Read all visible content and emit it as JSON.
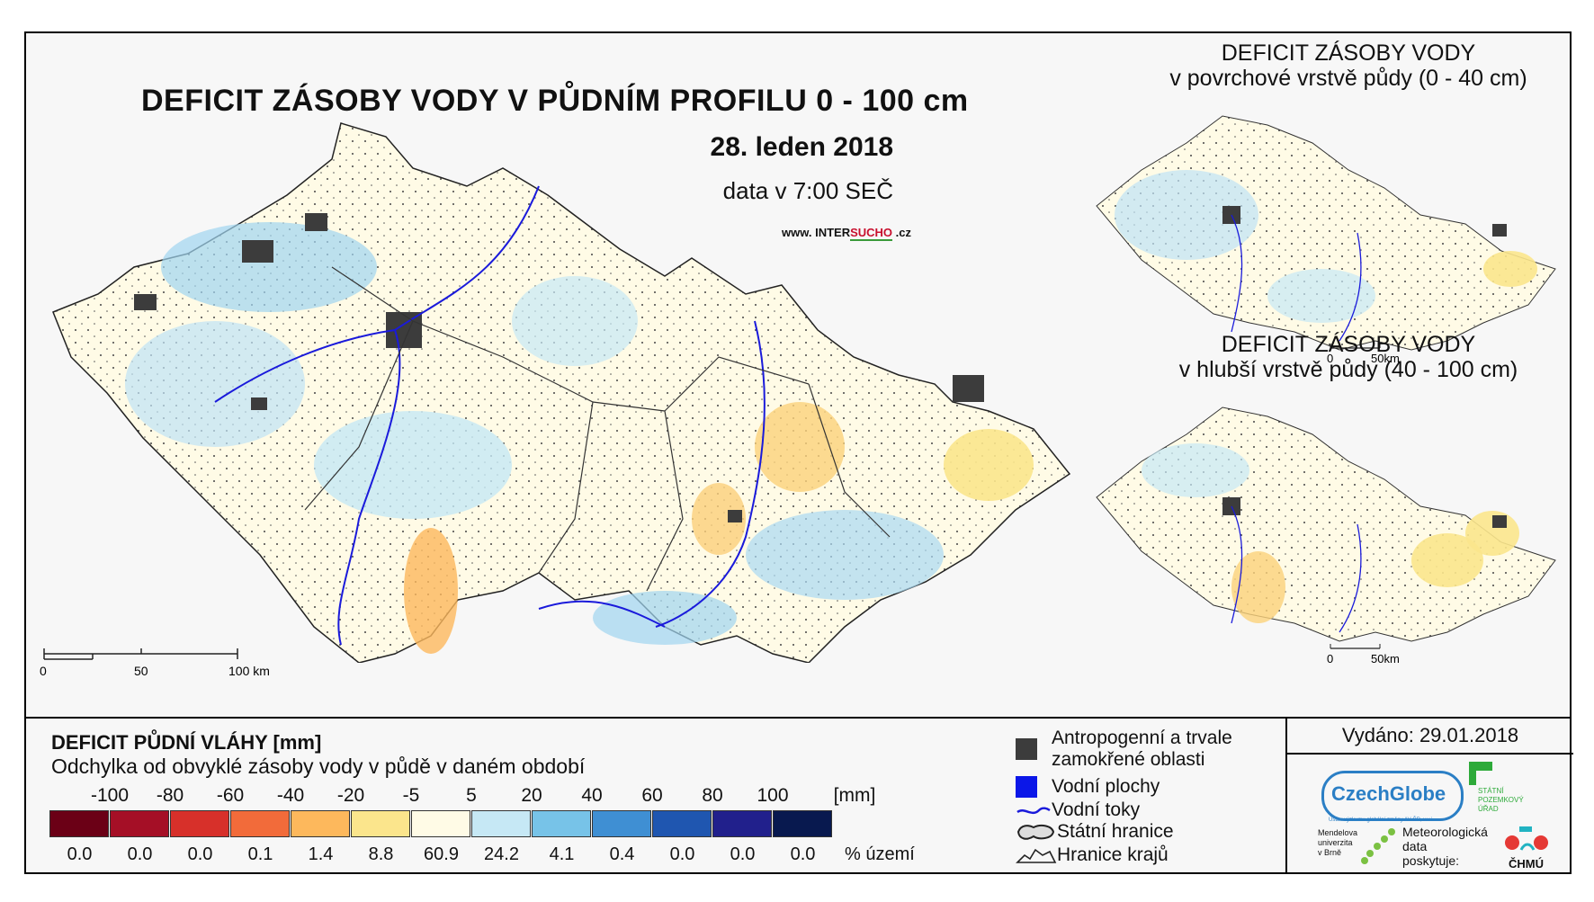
{
  "main": {
    "title": "DEFICIT ZÁSOBY VODY V PŮDNÍM PROFILU 0 - 100 cm",
    "date": "28. leden 2018",
    "data_time": "data v 7:00 SEČ",
    "website_prefix": "www. INTER",
    "website_highlight": "SUCHO",
    "website_suffix": " .cz",
    "scale": {
      "labels": [
        "0",
        "50",
        "100 km"
      ]
    }
  },
  "inset_top": {
    "title_line1": "DEFICIT ZÁSOBY VODY",
    "title_line2": "v povrchové vrstvě půdy (0 - 40 cm)",
    "scale_labels": [
      "0",
      "50km"
    ]
  },
  "inset_bottom": {
    "title_line1": "DEFICIT ZÁSOBY VODY",
    "title_line2": "v hlubší vrstvě půdy (40 - 100 cm)",
    "scale_labels": [
      "0",
      "50km"
    ]
  },
  "legend": {
    "title": "DEFICIT PŮDNÍ VLÁHY [mm]",
    "subtitle": "Odchylka od obvyklé zásoby vody v půdě v daném období",
    "ticks": [
      "-100",
      "-80",
      "-60",
      "-40",
      "-20",
      "-5",
      "5",
      "20",
      "40",
      "60",
      "80",
      "100"
    ],
    "unit": "[mm]",
    "colors": [
      "#6b0016",
      "#a50f26",
      "#d7302a",
      "#f26b3a",
      "#fdb85c",
      "#fbe58c",
      "#fffbe6",
      "#c6e8f5",
      "#77c3e8",
      "#3f8fd3",
      "#1f56b0",
      "#21208c",
      "#08194f"
    ],
    "percentages": [
      "0.0",
      "0.0",
      "0.0",
      "0.1",
      "1.4",
      "8.8",
      "60.9",
      "24.2",
      "4.1",
      "0.4",
      "0.0",
      "0.0",
      "0.0"
    ],
    "percent_label": "% území"
  },
  "symbols": {
    "anthropogenic_line1": "Antropogenní a trvale",
    "anthropogenic_line2": "zamokřené oblasti",
    "water_bodies": "Vodní plochy",
    "rivers": "Vodní toky",
    "state_border": "Státní hranice",
    "region_border": "Hranice krajů"
  },
  "issued": "Vydáno: 29.01.2018",
  "logos": {
    "czechglobe": "CzechGlobe",
    "czechglobe_sub": "Ústav výzkumu globální změny AV ČR, v.v.i.",
    "mendel_line1": "Mendelova",
    "mendel_line2": "univerzita",
    "mendel_line3": "v Brně",
    "spu_line1": "STÁTNÍ",
    "spu_line2": "POZEMKOVÝ",
    "spu_line3": "ÚŘAD",
    "meteo_line1": "Meteorologická",
    "meteo_line2": "data",
    "meteo_line3": "poskytuje:",
    "chmu": "ČHMÚ"
  }
}
